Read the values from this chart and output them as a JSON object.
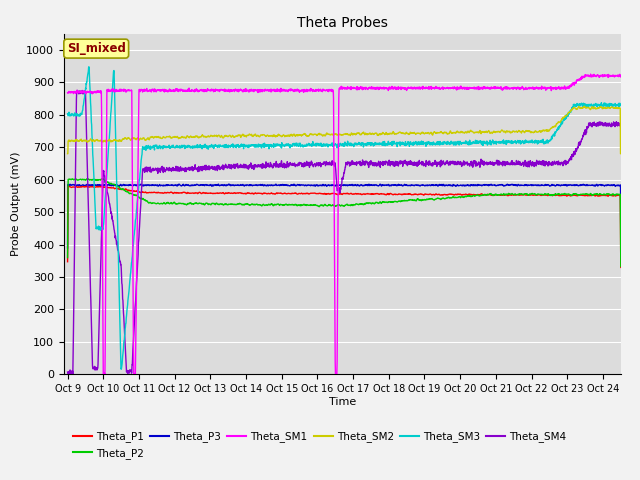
{
  "title": "Theta Probes",
  "xlabel": "Time",
  "ylabel": "Probe Output (mV)",
  "ylim": [
    0,
    1050
  ],
  "yticks": [
    0,
    100,
    200,
    300,
    400,
    500,
    600,
    700,
    800,
    900,
    1000
  ],
  "x_tick_labels": [
    "Oct 9",
    "Oct 10",
    "Oct 11",
    "Oct 12",
    "Oct 13",
    "Oct 14",
    "Oct 15",
    "Oct 16",
    "Oct 17",
    "Oct 18",
    "Oct 19",
    "Oct 20",
    "Oct 21",
    "Oct 22",
    "Oct 23",
    "Oct 24"
  ],
  "annotation_text": "SI_mixed",
  "annotation_color": "#8B0000",
  "annotation_bg": "#FFFF99",
  "annotation_border": "#999900",
  "plot_bg_color": "#DCDCDC",
  "fig_bg_color": "#F2F2F2",
  "grid_color": "#FFFFFF",
  "colors": {
    "Theta_P1": "#FF0000",
    "Theta_P2": "#00CC00",
    "Theta_P3": "#0000CC",
    "Theta_SM1": "#FF00FF",
    "Theta_SM2": "#CCCC00",
    "Theta_SM3": "#00CCCC",
    "Theta_SM4": "#8800CC"
  },
  "legend_order": [
    "Theta_P1",
    "Theta_P2",
    "Theta_P3",
    "Theta_SM1",
    "Theta_SM2",
    "Theta_SM3",
    "Theta_SM4"
  ]
}
